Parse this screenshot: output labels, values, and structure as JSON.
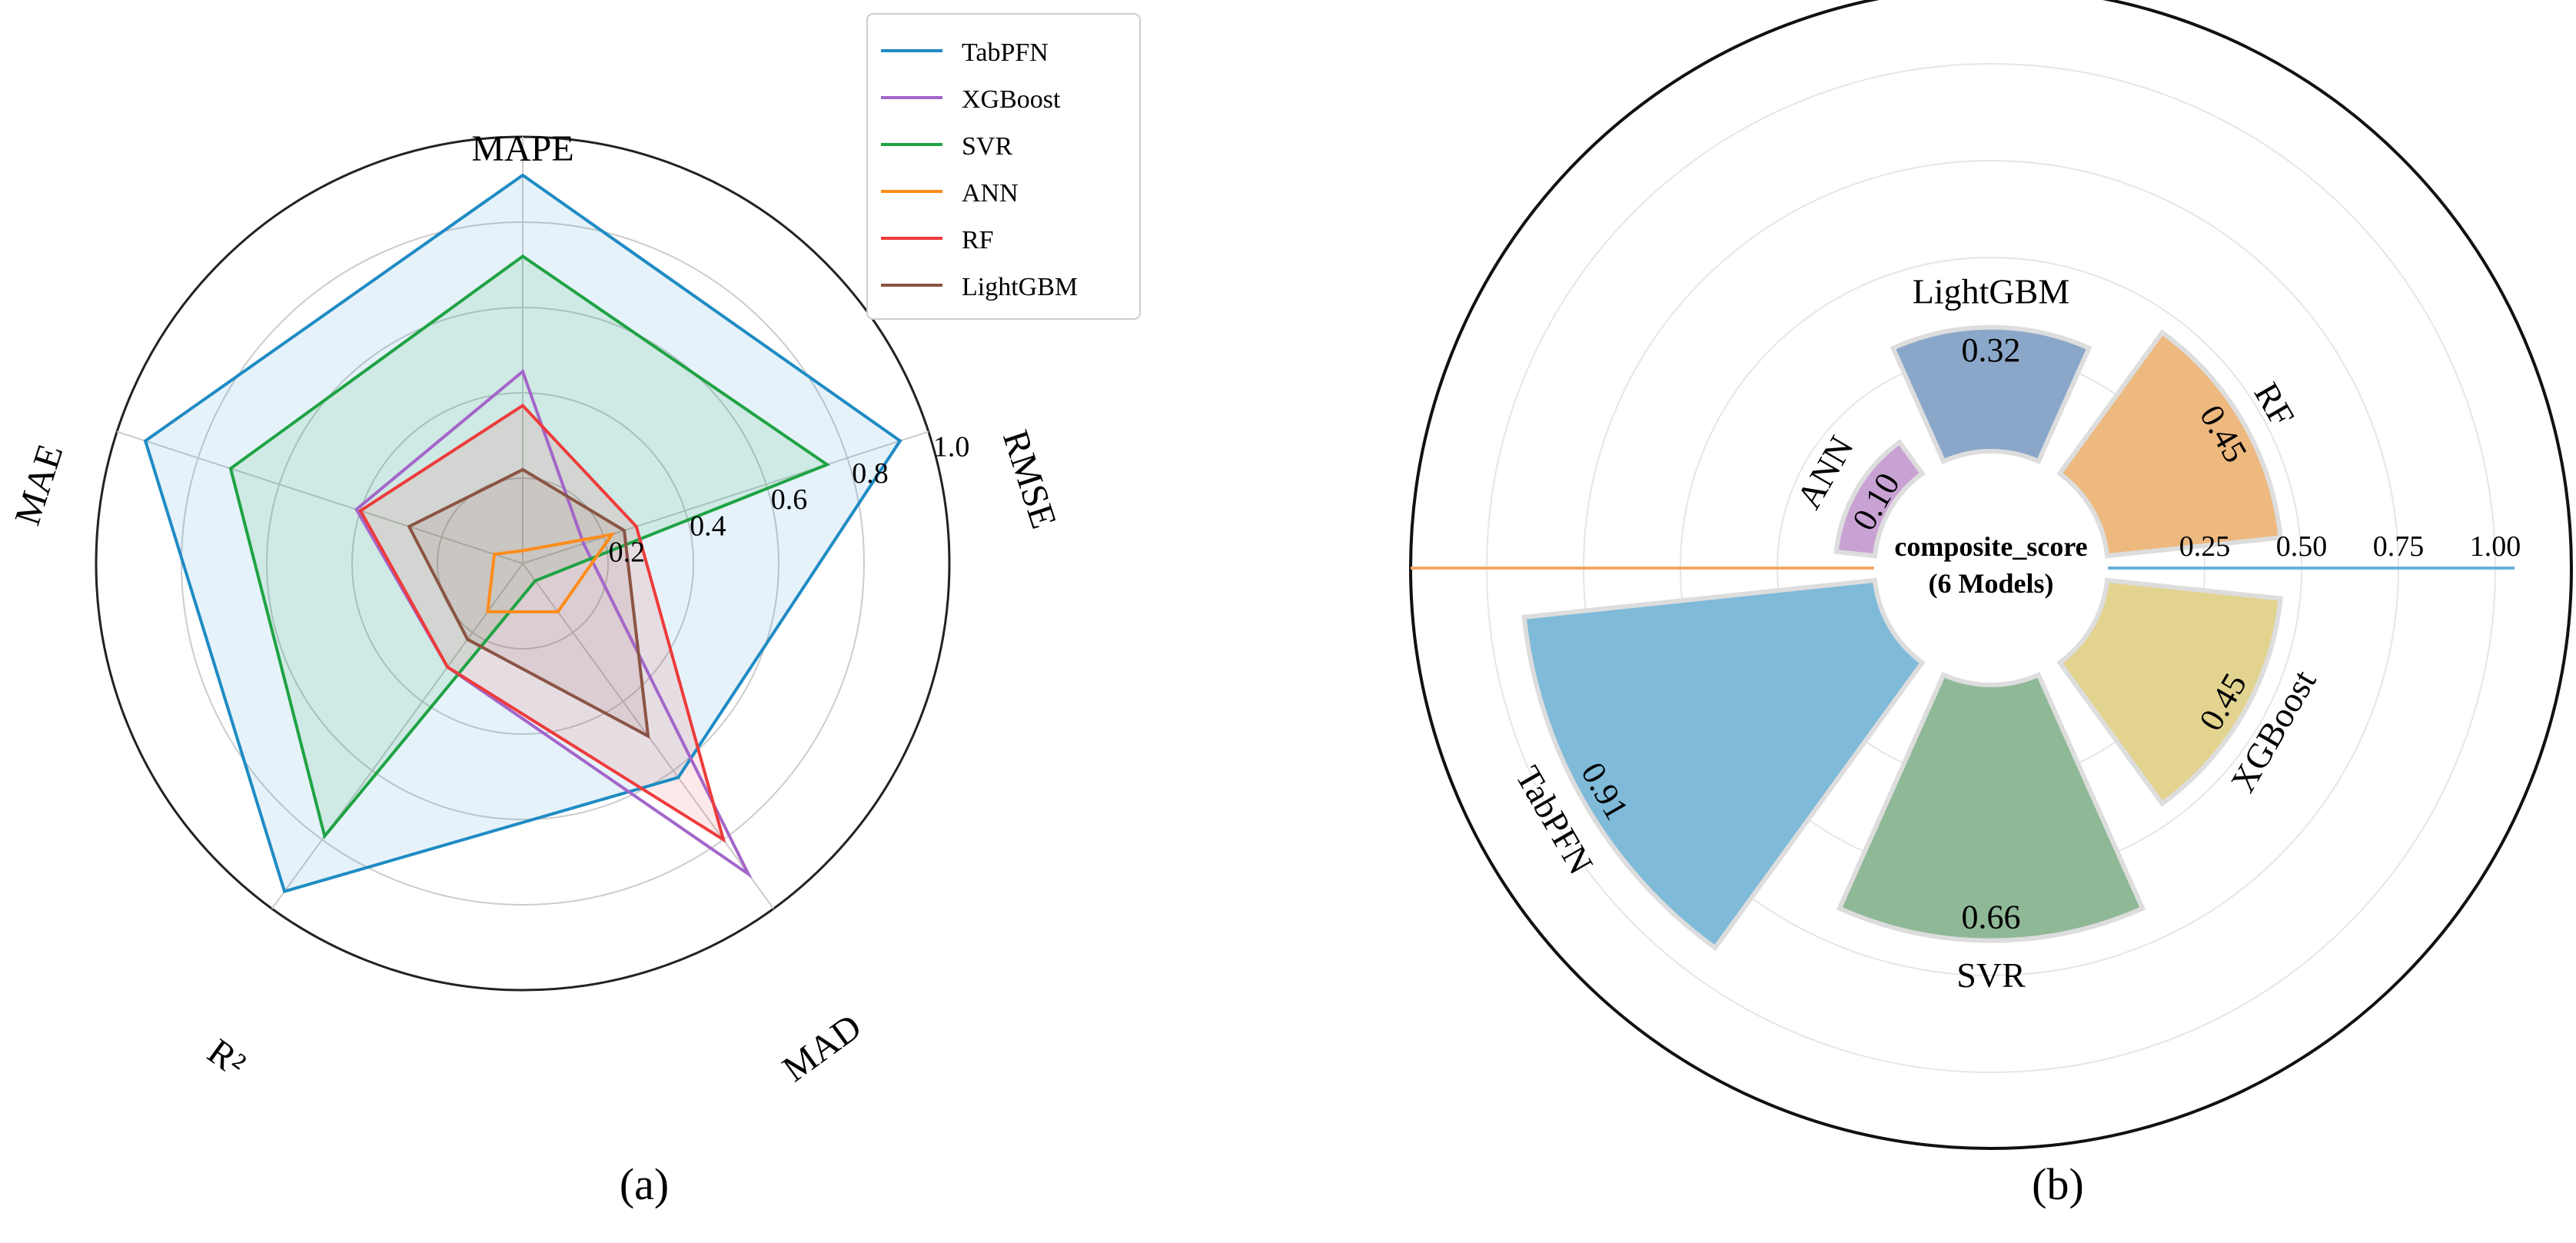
{
  "chart_data": [
    {
      "type": "radar",
      "panel_label": "(a)",
      "axes": [
        "MAPE",
        "RMSE",
        "MAD",
        "R²",
        "MAE"
      ],
      "rlim": [
        0,
        1.0
      ],
      "rticks": [
        "0.2",
        "0.4",
        "0.6",
        "0.8",
        "1.0"
      ],
      "legend_position": "top-right",
      "series": [
        {
          "name": "TabPFN",
          "color": "#1f8bc4",
          "fill": true,
          "values": [
            0.91,
            0.93,
            0.62,
            0.95,
            0.93
          ]
        },
        {
          "name": "XGBoost",
          "color": "#a366c9",
          "fill": false,
          "values": [
            0.45,
            0.15,
            0.9,
            0.3,
            0.41
          ]
        },
        {
          "name": "SVR",
          "color": "#1fa344",
          "fill": true,
          "values": [
            0.72,
            0.75,
            0.05,
            0.79,
            0.72
          ]
        },
        {
          "name": "ANN",
          "color": "#ff8c1a",
          "fill": false,
          "values": [
            0.03,
            0.22,
            0.14,
            0.14,
            0.07
          ]
        },
        {
          "name": "RF",
          "color": "#ee3b3b",
          "fill": true,
          "values": [
            0.37,
            0.28,
            0.8,
            0.3,
            0.4
          ]
        },
        {
          "name": "LightGBM",
          "color": "#8b5444",
          "fill": true,
          "values": [
            0.22,
            0.25,
            0.5,
            0.22,
            0.28
          ]
        }
      ]
    },
    {
      "type": "polar_bar",
      "panel_label": "(b)",
      "center_title": "composite_score",
      "center_subtitle": "(6 Models)",
      "rlim": [
        0,
        1.0
      ],
      "rticks": [
        "0.25",
        "0.50",
        "0.75",
        "1.00"
      ],
      "bars": [
        {
          "name": "LightGBM",
          "value": 0.32,
          "label": "0.32",
          "color": "#8aa7c9"
        },
        {
          "name": "RF",
          "value": 0.45,
          "label": "0.45",
          "color": "#edb97f"
        },
        {
          "name": "XGBoost",
          "value": 0.45,
          "label": "0.45",
          "color": "#e2d38f"
        },
        {
          "name": "SVR",
          "value": 0.66,
          "label": "0.66",
          "color": "#8fb896"
        },
        {
          "name": "TabPFN",
          "value": 0.91,
          "label": "0.91",
          "color": "#7fbad9"
        },
        {
          "name": "ANN",
          "value": 0.1,
          "label": "0.10",
          "color": "#c9a2d4"
        }
      ]
    }
  ]
}
